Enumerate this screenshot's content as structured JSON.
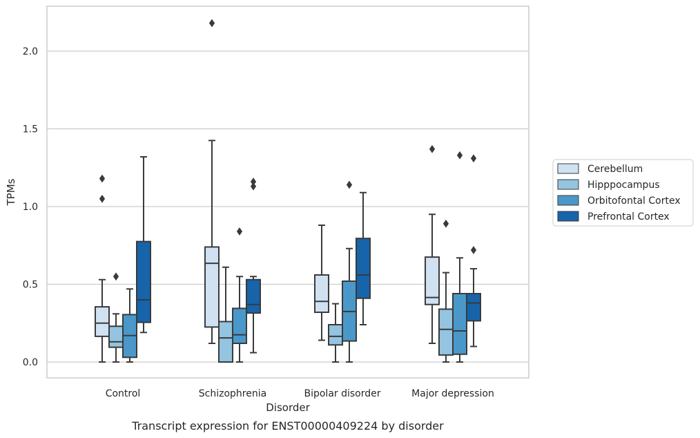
{
  "caption": "Transcript expression for ENST00000409224 by disorder",
  "chart_data": {
    "type": "box",
    "xlabel": "Disorder",
    "ylabel": "TPMs",
    "ylim": [
      -0.1,
      2.3
    ],
    "yticks": [
      0.0,
      0.5,
      1.0,
      1.5,
      2.0
    ],
    "ytick_labels": [
      "0.0",
      "0.5",
      "1.0",
      "1.5",
      "2.0"
    ],
    "grid": "horizontal",
    "legend_position": "right",
    "categories": [
      "Control",
      "Schizophrenia",
      "Bipolar disorder",
      "Major depression"
    ],
    "series": [
      {
        "name": "Cerebellum",
        "color": "#d0e1f2",
        "boxes": [
          {
            "whislo": 0.0,
            "q1": 0.165,
            "med": 0.25,
            "q3": 0.355,
            "whishi": 0.53,
            "fliers": [
              1.05,
              1.18
            ]
          },
          {
            "whislo": 0.12,
            "q1": 0.225,
            "med": 0.635,
            "q3": 0.74,
            "whishi": 1.425,
            "fliers": [
              2.18
            ]
          },
          {
            "whislo": 0.14,
            "q1": 0.32,
            "med": 0.39,
            "q3": 0.56,
            "whishi": 0.88,
            "fliers": []
          },
          {
            "whislo": 0.12,
            "q1": 0.37,
            "med": 0.415,
            "q3": 0.675,
            "whishi": 0.95,
            "fliers": [
              1.37
            ]
          }
        ]
      },
      {
        "name": "Hipppocampus",
        "color": "#94c4df",
        "boxes": [
          {
            "whislo": 0.0,
            "q1": 0.095,
            "med": 0.13,
            "q3": 0.23,
            "whishi": 0.31,
            "fliers": [
              0.55
            ]
          },
          {
            "whislo": 0.0,
            "q1": 0.0,
            "med": 0.155,
            "q3": 0.26,
            "whishi": 0.61,
            "fliers": []
          },
          {
            "whislo": 0.0,
            "q1": 0.11,
            "med": 0.165,
            "q3": 0.24,
            "whishi": 0.375,
            "fliers": []
          },
          {
            "whislo": 0.0,
            "q1": 0.045,
            "med": 0.21,
            "q3": 0.34,
            "whishi": 0.575,
            "fliers": [
              0.89
            ]
          }
        ]
      },
      {
        "name": "Orbitofontal Cortex",
        "color": "#4a98c9",
        "boxes": [
          {
            "whislo": 0.0,
            "q1": 0.03,
            "med": 0.17,
            "q3": 0.305,
            "whishi": 0.47,
            "fliers": []
          },
          {
            "whislo": 0.0,
            "q1": 0.12,
            "med": 0.175,
            "q3": 0.345,
            "whishi": 0.55,
            "fliers": [
              0.84
            ]
          },
          {
            "whislo": 0.0,
            "q1": 0.135,
            "med": 0.325,
            "q3": 0.52,
            "whishi": 0.73,
            "fliers": [
              1.14
            ]
          },
          {
            "whislo": 0.0,
            "q1": 0.05,
            "med": 0.2,
            "q3": 0.44,
            "whishi": 0.67,
            "fliers": [
              1.33
            ]
          }
        ]
      },
      {
        "name": "Prefrontal Cortex",
        "color": "#1764ab",
        "boxes": [
          {
            "whislo": 0.19,
            "q1": 0.255,
            "med": 0.4,
            "q3": 0.775,
            "whishi": 1.32,
            "fliers": []
          },
          {
            "whislo": 0.06,
            "q1": 0.315,
            "med": 0.37,
            "q3": 0.53,
            "whishi": 0.55,
            "fliers": [
              1.13,
              1.16
            ]
          },
          {
            "whislo": 0.24,
            "q1": 0.41,
            "med": 0.56,
            "q3": 0.795,
            "whishi": 1.09,
            "fliers": []
          },
          {
            "whislo": 0.1,
            "q1": 0.265,
            "med": 0.38,
            "q3": 0.44,
            "whishi": 0.6,
            "fliers": [
              0.72,
              1.31
            ]
          }
        ]
      }
    ]
  }
}
